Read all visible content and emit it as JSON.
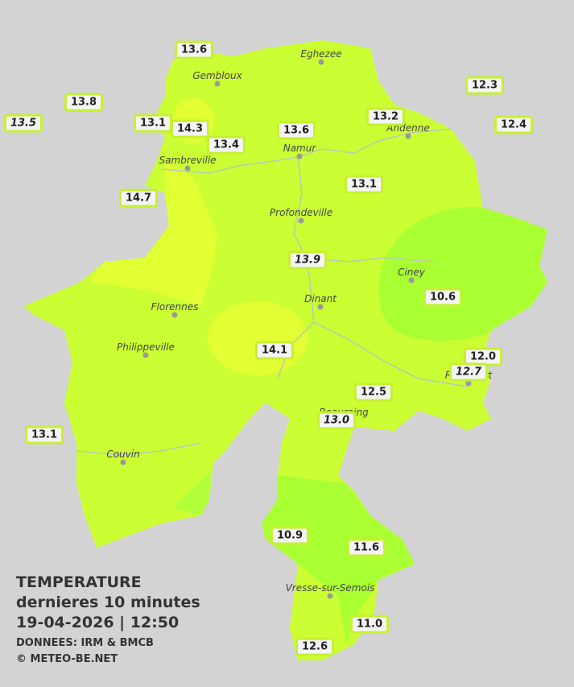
{
  "title": {
    "line1": "TEMPERATURE",
    "line2": "dernieres 10 minutes",
    "line3": "19-04-2026  |  12:50",
    "source": "DONNEES: IRM & BMCB",
    "credit": "© METEO-BE.NET"
  },
  "towns": [
    "Eghezee",
    "Gembloux",
    "Andenne",
    "Namur",
    "Sambreville",
    "Profondeville",
    "Ciney",
    "Dinant",
    "Florennes",
    "Philippeville",
    "Rochefort",
    "Beauraing",
    "Couvin",
    "Vresse-sur-Semois"
  ],
  "stations": [
    "13.6",
    "13.8",
    "13.5",
    "13.1",
    "14.3",
    "13.4",
    "13.6",
    "13.2",
    "12.3",
    "12.4",
    "14.7",
    "13.1",
    "13.9",
    "10.6",
    "14.1",
    "12.0",
    "12.7",
    "12.5",
    "13.0",
    "13.1",
    "10.9",
    "11.6",
    "11.0",
    "12.6"
  ]
}
